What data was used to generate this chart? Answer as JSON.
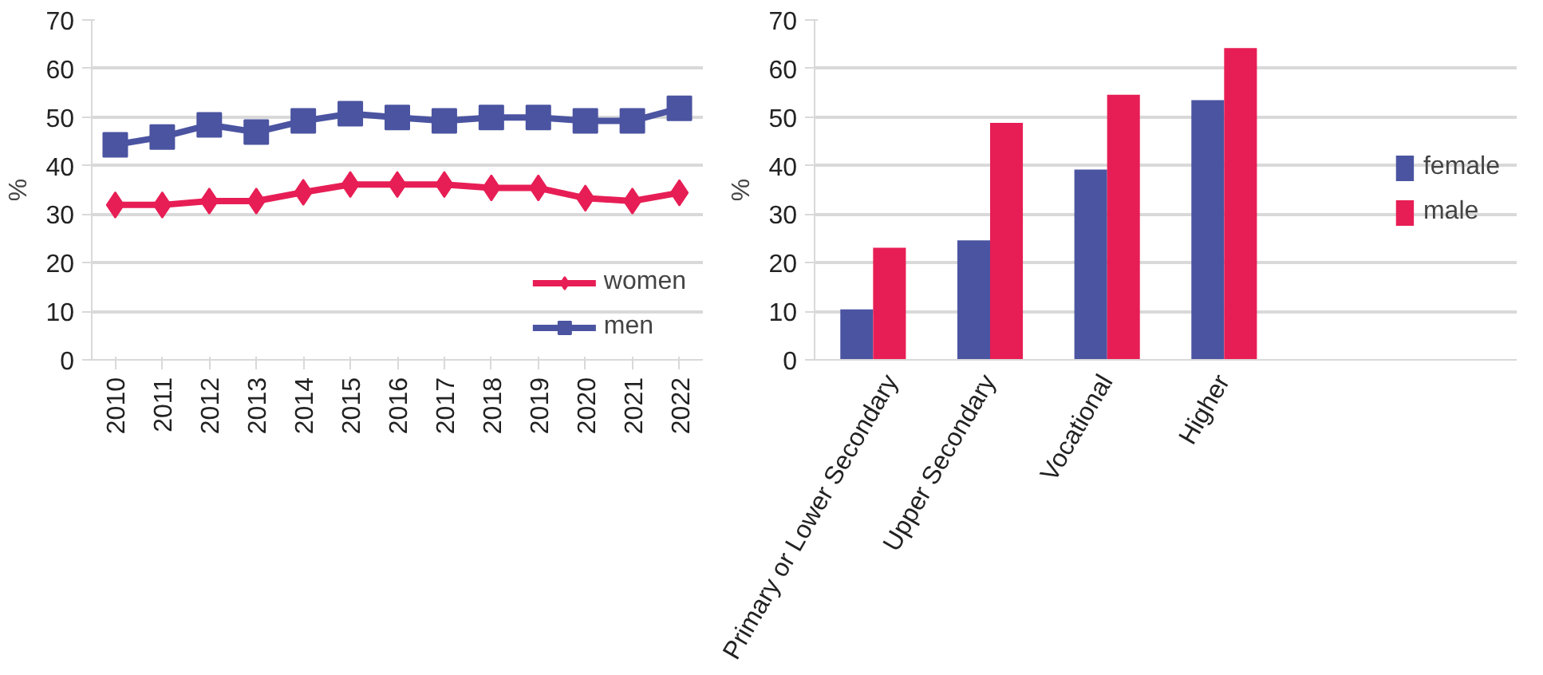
{
  "chart_data": [
    {
      "type": "line",
      "ylabel": "%",
      "x": [
        2010,
        2011,
        2012,
        2013,
        2014,
        2015,
        2016,
        2017,
        2018,
        2019,
        2020,
        2021,
        2022
      ],
      "xlim": [
        2009.5,
        2022.5
      ],
      "xticks": [
        2010,
        2011,
        2012,
        2013,
        2014,
        2015,
        2016,
        2017,
        2018,
        2019,
        2020,
        2021,
        2022
      ],
      "ylim": [
        0,
        70
      ],
      "yticks": [
        0,
        10,
        20,
        30,
        40,
        50,
        60,
        70
      ],
      "grid": "y",
      "legend": "bottom right",
      "line_style": "solid",
      "series": [
        {
          "name": "women",
          "color": "#e71e55",
          "marker": "diamond",
          "values": [
            31.9,
            31.9,
            32.7,
            32.7,
            34.5,
            36.1,
            36.1,
            36.1,
            35.4,
            35.4,
            33.3,
            32.7,
            34.4
          ]
        },
        {
          "name": "men",
          "color": "#4b54a1",
          "marker": "square",
          "values": [
            44.3,
            45.9,
            48.4,
            46.9,
            49.2,
            50.7,
            49.9,
            49.2,
            49.9,
            49.9,
            49.2,
            49.2,
            51.8
          ]
        }
      ]
    },
    {
      "type": "bar",
      "ylabel": "%",
      "categories": [
        "Primary or Lower Secondary",
        "Upper Secondary",
        "Vocational",
        "Higher",
        null,
        null
      ],
      "ylim": [
        0,
        70
      ],
      "yticks": [
        0,
        10,
        20,
        30,
        40,
        50,
        60,
        70
      ],
      "grid": "y",
      "legend": "right",
      "series": [
        {
          "name": "female",
          "color": "#4b54a1",
          "values": [
            10.4,
            24.6,
            39.2,
            53.5,
            null,
            null
          ]
        },
        {
          "name": "male",
          "color": "#e71e55",
          "values": [
            23.1,
            48.8,
            54.6,
            64.2,
            null,
            null
          ]
        }
      ]
    }
  ]
}
